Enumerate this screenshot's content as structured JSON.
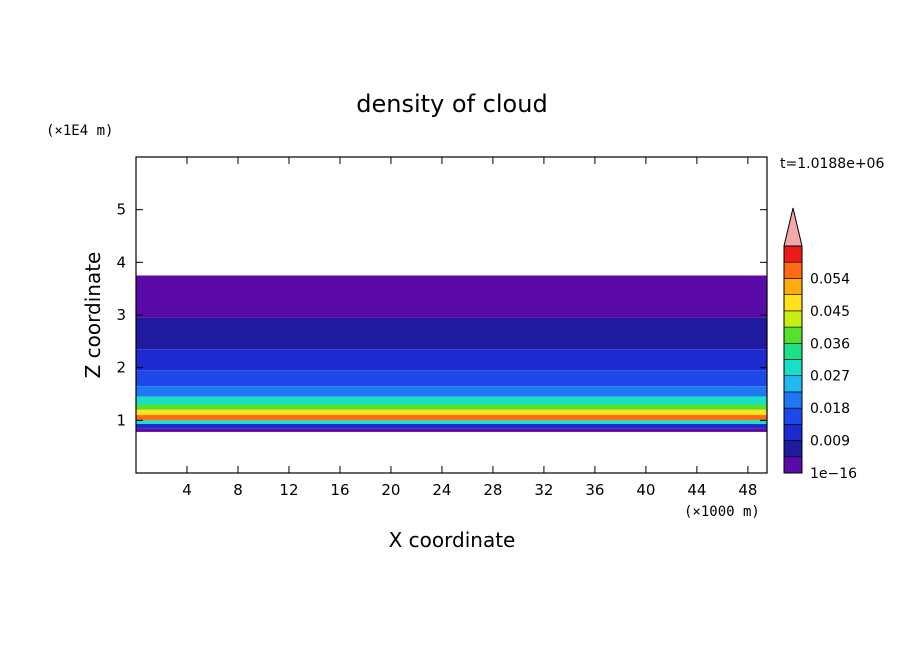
{
  "chart_data": {
    "type": "heatmap",
    "title": "density of cloud",
    "xlabel": "X coordinate",
    "ylabel": "Z coordinate",
    "x_unit_label": "(×1000 m)",
    "y_unit_label": "(×1E4 m)",
    "time_label": "t=1.0188e+06",
    "xlim": [
      0,
      49.5
    ],
    "ylim": [
      0,
      6
    ],
    "x_ticks": [
      "4",
      "8",
      "12",
      "16",
      "20",
      "24",
      "28",
      "32",
      "36",
      "40",
      "44",
      "48"
    ],
    "y_ticks": [
      "1",
      "2",
      "3",
      "4",
      "5"
    ],
    "colorbar": {
      "tick_labels": [
        "1e−16",
        "0.009",
        "0.018",
        "0.027",
        "0.036",
        "0.045",
        "0.054"
      ],
      "levels": [
        1e-16,
        0.0045,
        0.009,
        0.0135,
        0.018,
        0.0225,
        0.027,
        0.0315,
        0.036,
        0.0405,
        0.045,
        0.0495,
        0.054,
        0.0585
      ],
      "colors": [
        "#5a0aa6",
        "#1f1a9e",
        "#1d2ad0",
        "#1e48e8",
        "#1f78f2",
        "#22b8f0",
        "#18e0c8",
        "#1ee08a",
        "#55e22a",
        "#c8ef14",
        "#ffe21a",
        "#ffaa10",
        "#ff6a14",
        "#ee1a1a"
      ],
      "overflow_color": "#f2a8a8"
    },
    "layers": [
      {
        "z_bottom": 2.95,
        "z_top": 3.75,
        "value": 0.001
      },
      {
        "z_bottom": 2.35,
        "z_top": 2.95,
        "value": 0.006
      },
      {
        "z_bottom": 1.95,
        "z_top": 2.35,
        "value": 0.011
      },
      {
        "z_bottom": 1.65,
        "z_top": 1.95,
        "value": 0.016
      },
      {
        "z_bottom": 1.45,
        "z_top": 1.65,
        "value": 0.021
      },
      {
        "z_bottom": 1.3,
        "z_top": 1.45,
        "value": 0.028
      },
      {
        "z_bottom": 1.2,
        "z_top": 1.3,
        "value": 0.036
      },
      {
        "z_bottom": 1.1,
        "z_top": 1.2,
        "value": 0.047
      },
      {
        "z_bottom": 1.0,
        "z_top": 1.1,
        "value": 0.056
      },
      {
        "z_bottom": 0.93,
        "z_top": 1.0,
        "value": 0.03
      },
      {
        "z_bottom": 0.85,
        "z_top": 0.93,
        "value": 0.012
      },
      {
        "z_bottom": 0.78,
        "z_top": 0.85,
        "value": 0.004
      }
    ]
  }
}
